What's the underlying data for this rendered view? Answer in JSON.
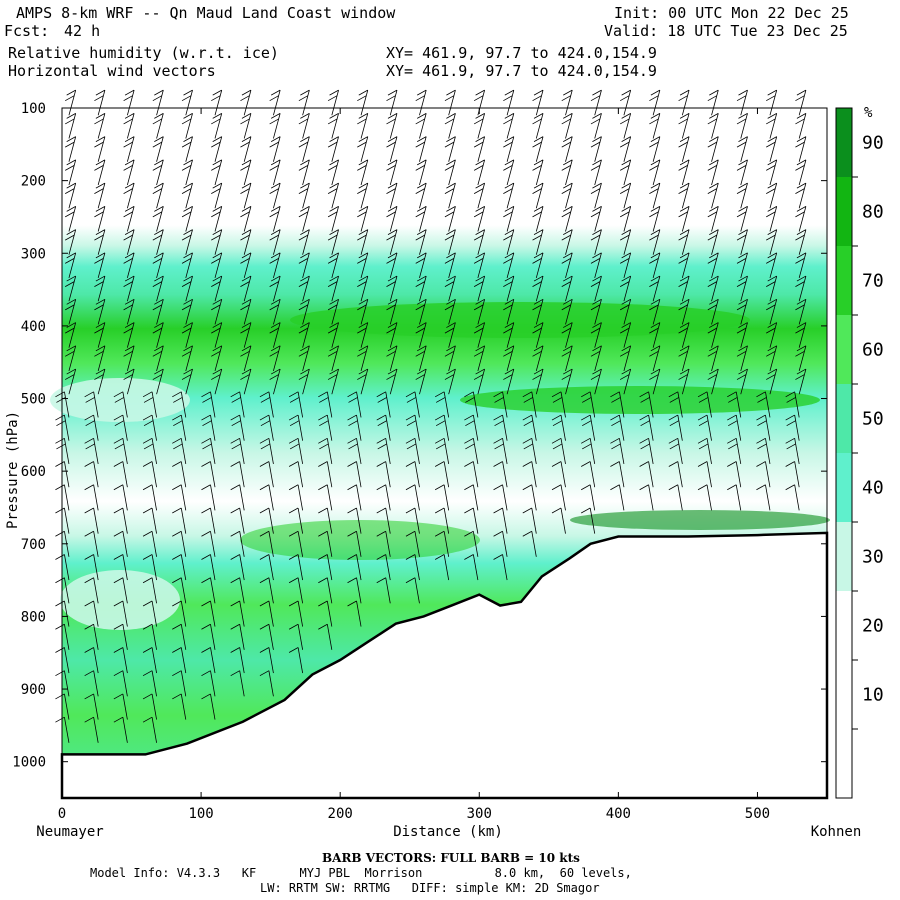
{
  "header": {
    "title_left": "AMPS 8-km WRF -- Qn Maud Land Coast window",
    "forecast_label": "Fcst:",
    "forecast_value": "42 h",
    "init": "Init: 00 UTC Mon 22 Dec 25",
    "valid": "Valid: 18 UTC Tue 23 Dec 25",
    "field1": "Relative humidity (w.r.t. ice)",
    "field2": "Horizontal wind vectors",
    "xy1": "XY= 461.9, 97.7 to 424.0,154.9",
    "xy2": "XY= 461.9, 97.7 to 424.0,154.9"
  },
  "chart_data": {
    "type": "cross-section contour",
    "ylabel": "Pressure (hPa)",
    "xlabel": "Distance (km)",
    "x_start_label": "Neumayer",
    "x_end_label": "Kohnen",
    "xlim": [
      0,
      550
    ],
    "ylim": [
      1050,
      100
    ],
    "x_ticks": [
      0,
      100,
      200,
      300,
      400,
      500
    ],
    "y_ticks": [
      100,
      200,
      300,
      400,
      500,
      600,
      700,
      800,
      900,
      1000
    ],
    "colorbar": {
      "unit": "%",
      "levels": [
        10,
        20,
        30,
        40,
        50,
        60,
        70,
        80,
        90
      ],
      "colors": [
        "#ffffff",
        "#ffffff",
        "#ffffff",
        "#c8f7e6",
        "#5ff0cc",
        "#4ee8a8",
        "#50e85a",
        "#28cf28",
        "#12b512",
        "#0b8f1d"
      ]
    },
    "terrain_surface_hpa": [
      [
        0,
        990
      ],
      [
        30,
        990
      ],
      [
        60,
        990
      ],
      [
        90,
        975
      ],
      [
        130,
        945
      ],
      [
        160,
        915
      ],
      [
        180,
        880
      ],
      [
        200,
        860
      ],
      [
        220,
        835
      ],
      [
        240,
        810
      ],
      [
        260,
        800
      ],
      [
        280,
        785
      ],
      [
        300,
        770
      ],
      [
        315,
        785
      ],
      [
        330,
        780
      ],
      [
        345,
        745
      ],
      [
        365,
        720
      ],
      [
        380,
        700
      ],
      [
        400,
        690
      ],
      [
        450,
        690
      ],
      [
        500,
        688
      ],
      [
        550,
        685
      ]
    ]
  },
  "footer": {
    "barb_title": "BARB VECTORS:  FULL BARB = 10 kts",
    "line1": "Model Info: V4.3.3   KF      MYJ PBL  Morrison          8.0 km,  60 levels,",
    "line2": "LW: RRTM SW: RRTMG   DIFF: simple KM: 2D Smagor"
  }
}
